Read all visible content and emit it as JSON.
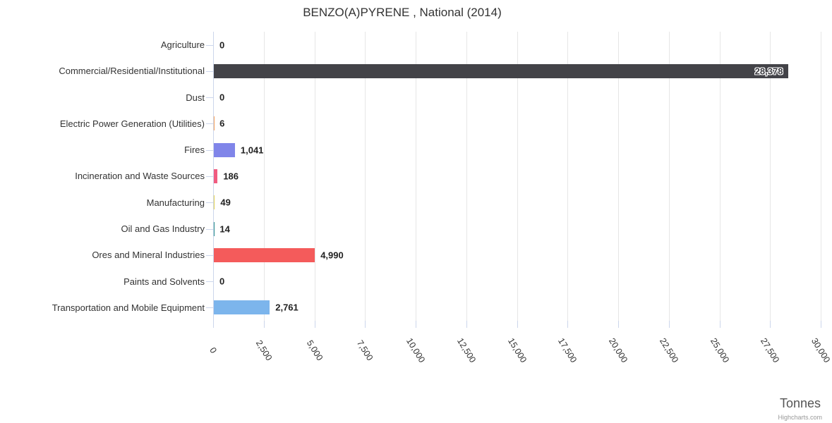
{
  "chart_data": {
    "type": "bar",
    "orientation": "horizontal",
    "title": "BENZO(A)PYRENE , National (2014)",
    "categories": [
      "Agriculture",
      "Commercial/Residential/Institutional",
      "Dust",
      "Electric Power Generation (Utilities)",
      "Fires",
      "Incineration and Waste Sources",
      "Manufacturing",
      "Oil and Gas Industry",
      "Ores and Mineral Industries",
      "Paints and Solvents",
      "Transportation and Mobile Equipment"
    ],
    "values": [
      0,
      28378,
      0,
      6,
      1041,
      186,
      49,
      14,
      4990,
      0,
      2761
    ],
    "value_labels": [
      "0",
      "28,378",
      "0",
      "6",
      "1,041",
      "186",
      "49",
      "14",
      "4,990",
      "0",
      "2,761"
    ],
    "bar_colors": [
      "#7cb5ec",
      "#434348",
      "#90ed7d",
      "#f7a35c",
      "#8085e9",
      "#f15c80",
      "#e4d354",
      "#2b908f",
      "#f45b5b",
      "#91e8e1",
      "#7cb5ec"
    ],
    "xlabel": "Tonnes",
    "ylabel": "",
    "xlim": [
      0,
      30000
    ],
    "tick_interval": 2500,
    "tick_labels": [
      "0",
      "2,500",
      "5,000",
      "7,500",
      "10,000",
      "12,500",
      "15,000",
      "17,500",
      "20,000",
      "22,500",
      "25,000",
      "27,500",
      "30,000"
    ],
    "grid": true,
    "legend": false,
    "credit": "Highcharts.com"
  },
  "styles": {
    "grid_color": "#e6e6e6",
    "axis_color": "#ccd6eb",
    "category_label_color": "#333333",
    "tick_label_color": "#333333",
    "data_label_color": "#222222",
    "title_color": "#333333",
    "axis_title_color": "#555555",
    "credit_color": "#999999",
    "background": "#ffffff"
  }
}
